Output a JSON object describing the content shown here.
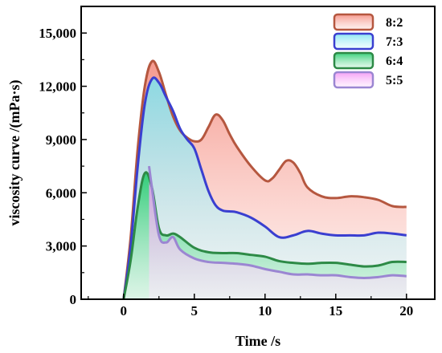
{
  "chart_data": {
    "type": "area",
    "xlabel": "Time /s",
    "ylabel": "viscosity curve  /(mPa·s)",
    "xlim": [
      -3,
      22
    ],
    "ylim": [
      0,
      16500
    ],
    "xticks": [
      0,
      5,
      10,
      15,
      20
    ],
    "xtick_labels": [
      "0",
      "5",
      "10",
      "15",
      "20"
    ],
    "yticks": [
      0,
      3000,
      6000,
      9000,
      12000,
      15000
    ],
    "ytick_labels": [
      "0",
      "3,000",
      "6,000",
      "9,000",
      "12,000",
      "15,000"
    ],
    "grid": false,
    "legend_position": "top-right",
    "series": [
      {
        "name": "8:2",
        "color": "#b5573f",
        "fill_top": "#f4877a",
        "fill_bottom": "#fde3df",
        "x": [
          0,
          0.5,
          1,
          1.5,
          2,
          2.5,
          3,
          3.5,
          4,
          4.5,
          5,
          5.5,
          6,
          6.5,
          7,
          7.5,
          8,
          9,
          10,
          10.5,
          11,
          11.5,
          12,
          12.5,
          13,
          14,
          15,
          16,
          17,
          18,
          19,
          20
        ],
        "y": [
          0,
          3500,
          8500,
          12000,
          13400,
          12800,
          11500,
          10300,
          9500,
          9100,
          8900,
          9000,
          9700,
          10400,
          10100,
          9300,
          8600,
          7500,
          6700,
          6800,
          7300,
          7800,
          7700,
          7100,
          6300,
          5800,
          5700,
          5800,
          5750,
          5600,
          5250,
          5200
        ]
      },
      {
        "name": "7:3",
        "color": "#3a3fd0",
        "fill_top": "#79e3f0",
        "fill_bottom": "#e4fafd",
        "x": [
          0,
          0.5,
          1,
          1.5,
          2,
          2.5,
          3,
          3.5,
          4,
          4.5,
          5,
          5.5,
          6,
          6.5,
          7,
          7.5,
          8,
          9,
          10,
          11,
          12,
          13,
          14,
          15,
          16,
          17,
          18,
          19,
          20
        ],
        "y": [
          0,
          3000,
          7500,
          11000,
          12400,
          12200,
          11400,
          10600,
          9600,
          9000,
          8500,
          7300,
          6100,
          5300,
          5000,
          4950,
          4900,
          4600,
          4100,
          3500,
          3600,
          3850,
          3700,
          3600,
          3600,
          3600,
          3750,
          3700,
          3600
        ]
      },
      {
        "name": "6:4",
        "color": "#2d8a46",
        "fill_top": "#18c965",
        "fill_bottom": "#c9f4d8",
        "x": [
          0,
          0.5,
          1,
          1.5,
          2,
          2.5,
          3,
          3.5,
          4,
          5,
          6,
          7,
          8,
          9,
          10,
          11,
          12,
          13,
          14,
          15,
          16,
          17,
          18,
          19,
          20
        ],
        "y": [
          0,
          2200,
          5200,
          7100,
          6300,
          4000,
          3600,
          3700,
          3500,
          2900,
          2650,
          2600,
          2600,
          2500,
          2400,
          2150,
          2050,
          2000,
          2050,
          2050,
          1950,
          1850,
          1900,
          2100,
          2100
        ]
      },
      {
        "name": "5:5",
        "color": "#9b86d2",
        "fill_top": "#f490f4",
        "fill_bottom": "#fde9fd",
        "x": [
          1.8,
          2,
          2.5,
          3,
          3.5,
          4,
          5,
          6,
          7,
          8,
          9,
          10,
          11,
          12,
          13,
          14,
          15,
          16,
          17,
          18,
          19,
          20
        ],
        "y": [
          7500,
          6300,
          3600,
          3200,
          3500,
          2800,
          2300,
          2100,
          2050,
          2000,
          1900,
          1700,
          1550,
          1400,
          1400,
          1350,
          1350,
          1250,
          1200,
          1250,
          1350,
          1300
        ]
      }
    ]
  }
}
